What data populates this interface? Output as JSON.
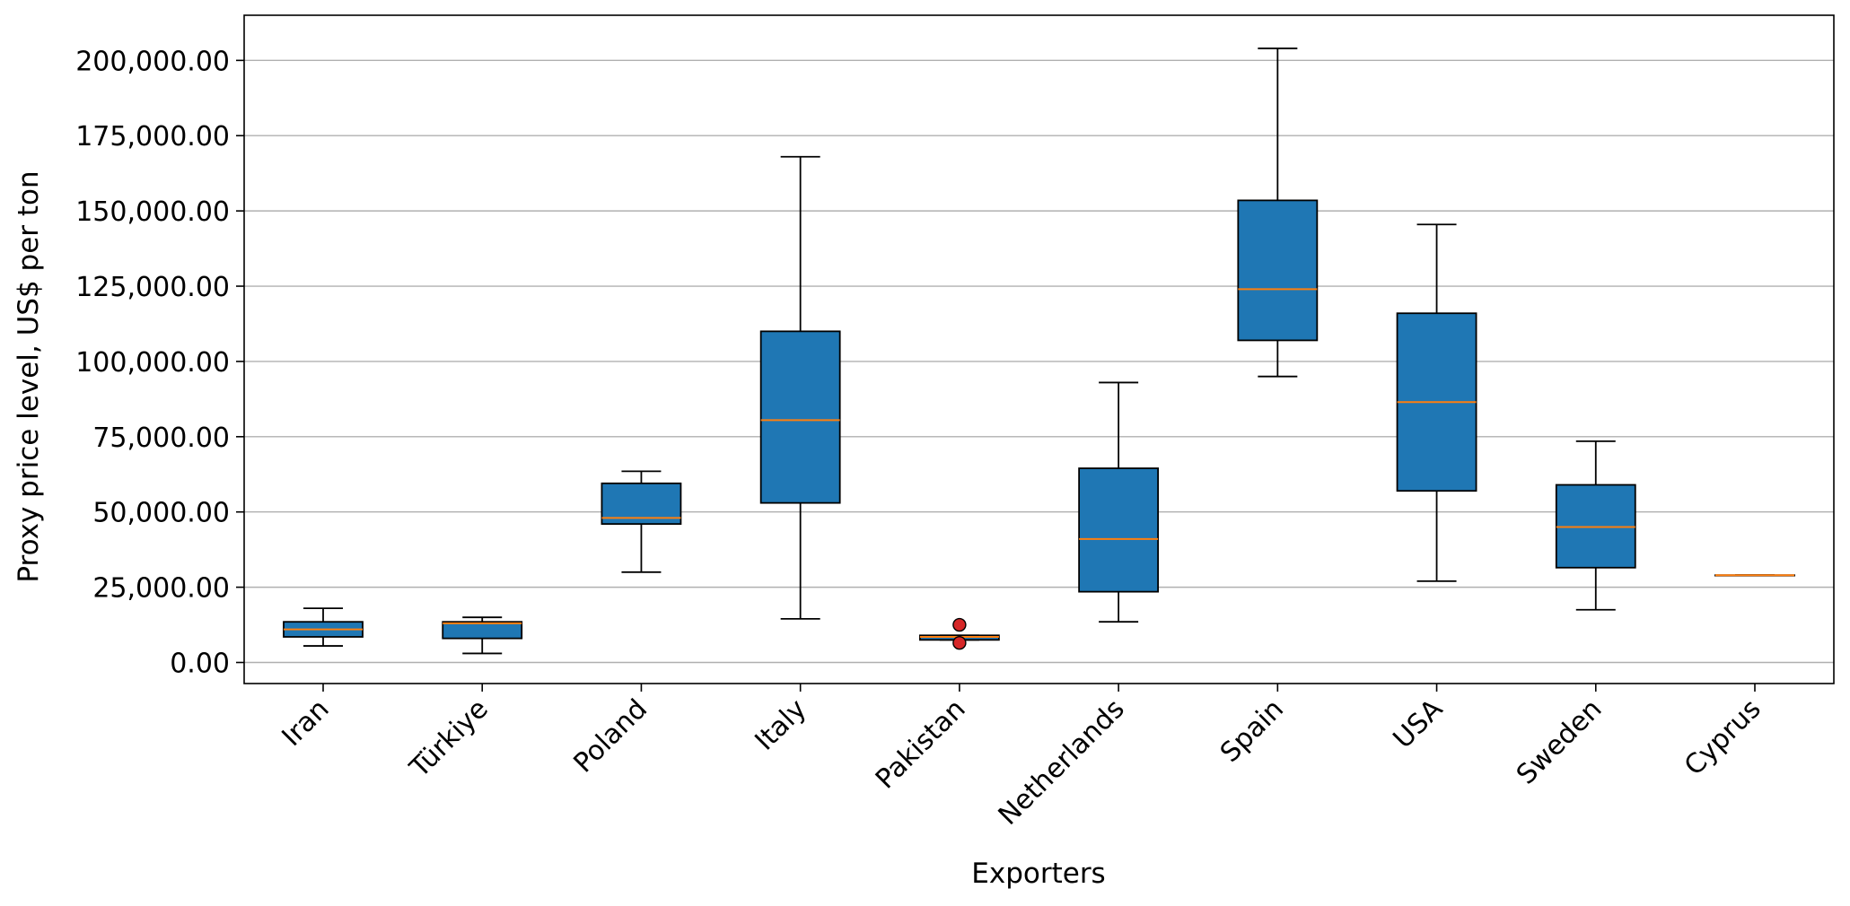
{
  "chart_data": {
    "type": "box",
    "title": "",
    "xlabel": "Exporters",
    "ylabel": "Proxy price level, US$ per ton",
    "ylim": [
      -7000,
      215000
    ],
    "yticks": [
      0,
      25000,
      50000,
      75000,
      100000,
      125000,
      150000,
      175000,
      200000
    ],
    "ytick_labels": [
      "0.00",
      "25,000.00",
      "50,000.00",
      "75,000.00",
      "100,000.00",
      "125,000.00",
      "150,000.00",
      "175,000.00",
      "200,000.00"
    ],
    "grid": "y",
    "categories": [
      "Iran",
      "Türkiye",
      "Poland",
      "Italy",
      "Pakistan",
      "Netherlands",
      "Spain",
      "USA",
      "Sweden",
      "Cyprus"
    ],
    "boxes": [
      {
        "whisker_low": 5500,
        "q1": 8500,
        "median": 11000,
        "q3": 13500,
        "whisker_high": 18000,
        "outliers": []
      },
      {
        "whisker_low": 3000,
        "q1": 8000,
        "median": 13000,
        "q3": 13500,
        "whisker_high": 15000,
        "outliers": []
      },
      {
        "whisker_low": 30000,
        "q1": 46000,
        "median": 48000,
        "q3": 59500,
        "whisker_high": 63500,
        "outliers": []
      },
      {
        "whisker_low": 14500,
        "q1": 53000,
        "median": 80500,
        "q3": 110000,
        "whisker_high": 168000,
        "outliers": []
      },
      {
        "whisker_low": 7500,
        "q1": 7500,
        "median": 8500,
        "q3": 9000,
        "whisker_high": 9000,
        "outliers": [
          12500,
          6500
        ]
      },
      {
        "whisker_low": 13500,
        "q1": 23500,
        "median": 41000,
        "q3": 64500,
        "whisker_high": 93000,
        "outliers": []
      },
      {
        "whisker_low": 95000,
        "q1": 107000,
        "median": 124000,
        "q3": 153500,
        "whisker_high": 204000,
        "outliers": []
      },
      {
        "whisker_low": 27000,
        "q1": 57000,
        "median": 86500,
        "q3": 116000,
        "whisker_high": 145500,
        "outliers": []
      },
      {
        "whisker_low": 17500,
        "q1": 31500,
        "median": 45000,
        "q3": 59000,
        "whisker_high": 73500,
        "outliers": []
      },
      {
        "whisker_low": 29000,
        "q1": 29000,
        "median": 29000,
        "q3": 29000,
        "whisker_high": 29000,
        "outliers": []
      }
    ],
    "colors": {
      "box_fill": "#1f77b4",
      "box_edge": "#000000",
      "median": "#ff7f0e",
      "outlier_fill": "#d62728",
      "grid": "#b0b0b0"
    }
  }
}
